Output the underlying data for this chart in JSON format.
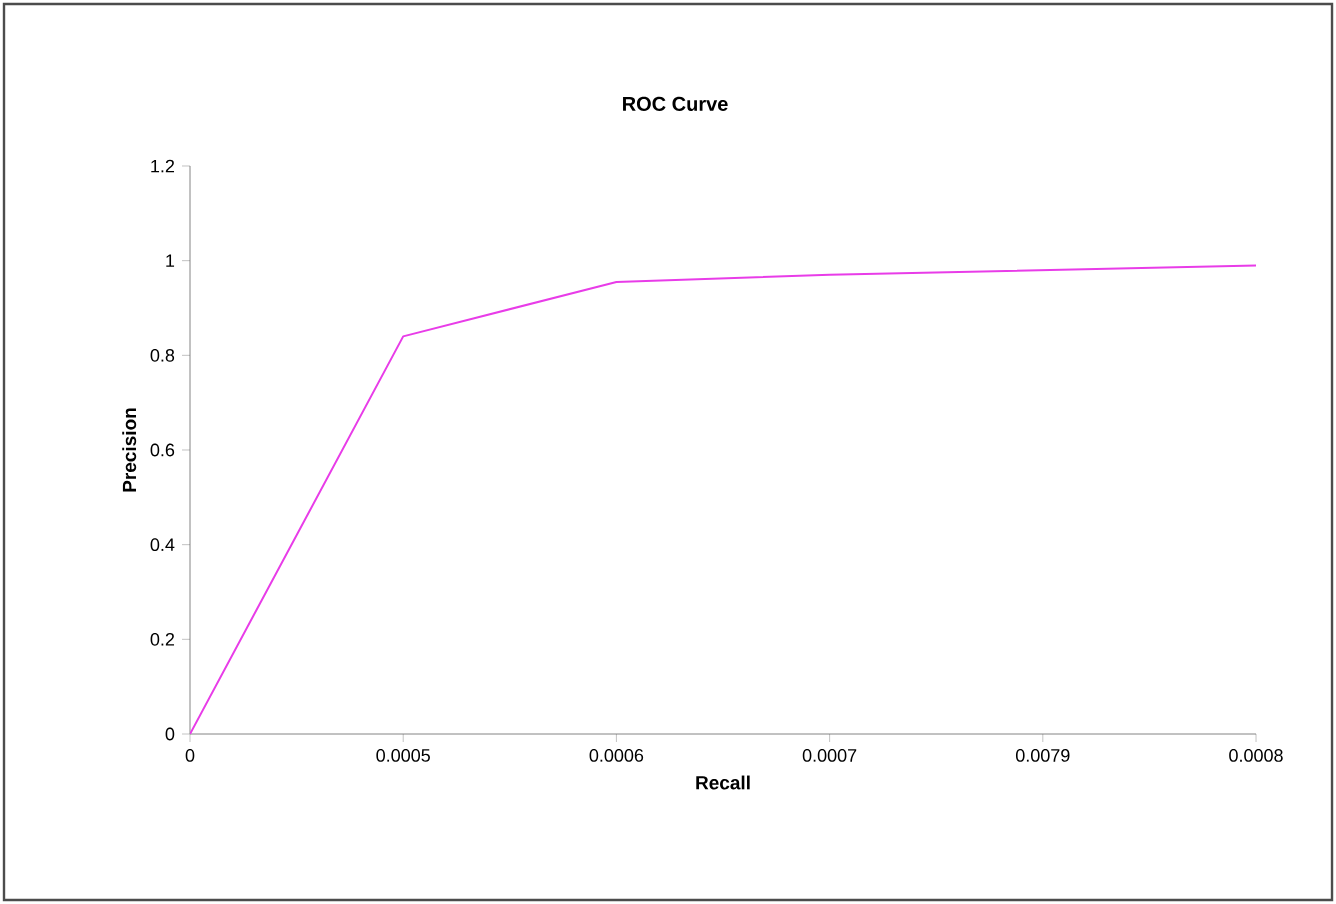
{
  "chart_data": {
    "type": "line",
    "title": "ROC Curve",
    "xlabel": "Recall",
    "ylabel": "Precision",
    "categories": [
      "0",
      "0.0005",
      "0.0006",
      "0.0007",
      "0.0079",
      "0.0008"
    ],
    "series": [
      {
        "color": "#e83ce8",
        "values": [
          0,
          0.84,
          0.955,
          0.97,
          0.98,
          0.99
        ]
      }
    ],
    "ylim": [
      0,
      1.2
    ],
    "yticks": [
      0,
      0.2,
      0.4,
      0.6,
      0.8,
      1,
      1.2
    ],
    "grid": false,
    "marker": "none",
    "line_style": "solid"
  }
}
